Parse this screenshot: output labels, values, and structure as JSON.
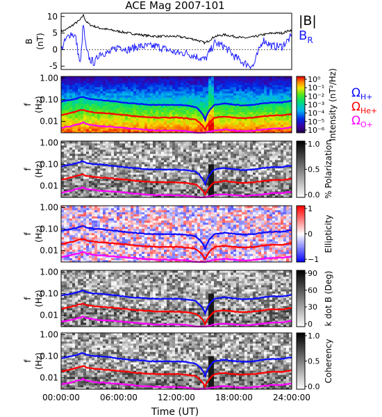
{
  "title": "ACE Mag 2007-101",
  "colors": {
    "b_total": "#000000",
    "b_r": "#1a1aff",
    "gyro_h": "#0a0aff",
    "gyro_he": "#ff0000",
    "gyro_o": "#ff00ff"
  },
  "labels": {
    "b_ylabel": "B",
    "b_yunit": "(nT)",
    "f_ylabel": "f",
    "f_yunit": "(Hz)",
    "legend_btotal": "|B|",
    "legend_br": "B",
    "legend_br_sub": "R",
    "omega": "Ω",
    "sub_h": "H+",
    "sub_he": "He+",
    "sub_o": "O+"
  },
  "chart_data": {
    "type": "heatmap",
    "x": {
      "label": "Time (UT)",
      "range_hours": [
        0,
        24
      ],
      "tick_labels": [
        "00:00:00",
        "06:00:00",
        "12:00:00",
        "18:00:00",
        "24:00:00"
      ]
    },
    "b_panel": {
      "type": "line",
      "ylabel": "B (nT)",
      "ylim": [
        -6,
        11
      ],
      "yticks": [
        "10",
        "5",
        "0",
        "-5"
      ],
      "series": [
        {
          "name": "|B|",
          "t": [
            0,
            0.5,
            1,
            1.5,
            2,
            2.3,
            2.6,
            3,
            3.5,
            4,
            5,
            6,
            7,
            8,
            9,
            10,
            11,
            12,
            13,
            14,
            15,
            16,
            17,
            18,
            19,
            20,
            21,
            22,
            23,
            24
          ],
          "values": [
            5.5,
            6.0,
            7.0,
            8.0,
            9.0,
            10.5,
            8.5,
            7.5,
            7.0,
            6.5,
            6.0,
            5.5,
            5.0,
            4.6,
            4.2,
            4.0,
            4.0,
            4.0,
            3.6,
            3.0,
            2.0,
            4.0,
            4.5,
            4.0,
            3.5,
            3.8,
            4.5,
            5.0,
            5.0,
            6.0
          ]
        },
        {
          "name": "B_R",
          "t": [
            0,
            0.5,
            1,
            1.5,
            2,
            2.3,
            2.6,
            3,
            3.5,
            4,
            5,
            6,
            7,
            8,
            9,
            10,
            11,
            12,
            13,
            14,
            15,
            16,
            17,
            18,
            19,
            20,
            21,
            22,
            23,
            24
          ],
          "values": [
            0.0,
            3.0,
            5.0,
            4.0,
            -5.0,
            8.0,
            0.0,
            -3.0,
            -4.0,
            -1.0,
            -1.0,
            1.0,
            0.0,
            1.0,
            1.0,
            1.0,
            0.0,
            -1.0,
            -1.0,
            -2.0,
            -3.0,
            2.0,
            1.0,
            -2.0,
            -4.0,
            -5.0,
            3.0,
            1.0,
            1.0,
            4.0
          ]
        }
      ]
    },
    "spectral_panels": [
      {
        "name": "Intensity",
        "ylabel": "f (Hz)",
        "yscale": "log",
        "ylim": [
          0.003,
          1.2
        ],
        "yticks": [
          "1.00",
          "0.10",
          "0.01"
        ],
        "colorbar_label": "Intensity (nT²/Hz)",
        "colorbar_ticks": [
          "10⁰",
          "10⁻¹",
          "10⁻²",
          "10⁻³",
          "10⁻⁴",
          "10⁻⁵",
          "10⁻⁶"
        ],
        "colormap": "rainbow"
      },
      {
        "name": "% Polarization",
        "ylabel": "f (Hz)",
        "yscale": "log",
        "ylim": [
          0.003,
          1.2
        ],
        "yticks": [
          "1.00",
          "0.10",
          "0.01"
        ],
        "colorbar_label": "% Polarization",
        "colorbar_ticks": [
          "1.0",
          "0.5",
          "0.0"
        ],
        "colormap": "gray"
      },
      {
        "name": "Ellipticity",
        "ylabel": "f (Hz)",
        "yscale": "log",
        "ylim": [
          0.003,
          1.2
        ],
        "yticks": [
          "1.00",
          "0.10",
          "0.01"
        ],
        "colorbar_label": "Ellipticity",
        "colorbar_ticks": [
          "1",
          "0",
          "−1"
        ],
        "colormap": "bwr"
      },
      {
        "name": "k dot B",
        "ylabel": "f (Hz)",
        "yscale": "log",
        "ylim": [
          0.003,
          1.2
        ],
        "yticks": [
          "1.00",
          "0.10",
          "0.01"
        ],
        "colorbar_label": "k dot B (Deg)",
        "colorbar_ticks": [
          "90",
          "60",
          "30",
          "0"
        ],
        "colormap": "gray"
      },
      {
        "name": "Coherency",
        "ylabel": "f (Hz)",
        "yscale": "log",
        "ylim": [
          0.003,
          1.2
        ],
        "yticks": [
          "1.00",
          "0.10",
          "0.01"
        ],
        "colorbar_label": "Coherency",
        "colorbar_ticks": [
          "1.0",
          "0.5",
          "0.0"
        ],
        "colormap": "gray"
      }
    ],
    "gyrofrequency_lines": {
      "t": [
        0,
        0.5,
        1,
        1.5,
        2,
        2.3,
        2.6,
        3,
        3.5,
        4,
        5,
        6,
        7,
        8,
        9,
        10,
        11,
        12,
        13,
        14,
        15,
        16,
        17,
        18,
        19,
        20,
        21,
        22,
        23,
        24
      ],
      "series": [
        {
          "name": "Ω_H+",
          "values_hz": [
            0.08,
            0.09,
            0.1,
            0.11,
            0.13,
            0.14,
            0.12,
            0.11,
            0.1,
            0.1,
            0.09,
            0.08,
            0.07,
            0.065,
            0.06,
            0.058,
            0.058,
            0.058,
            0.055,
            0.046,
            0.012,
            0.06,
            0.068,
            0.06,
            0.055,
            0.058,
            0.068,
            0.075,
            0.075,
            0.09
          ]
        },
        {
          "name": "Ω_He+",
          "values_hz": [
            0.02,
            0.022,
            0.025,
            0.028,
            0.033,
            0.035,
            0.03,
            0.028,
            0.026,
            0.025,
            0.023,
            0.021,
            0.019,
            0.017,
            0.016,
            0.015,
            0.015,
            0.015,
            0.014,
            0.012,
            0.004,
            0.015,
            0.017,
            0.015,
            0.014,
            0.015,
            0.017,
            0.019,
            0.019,
            0.022
          ]
        },
        {
          "name": "Ω_O+",
          "values_hz": [
            0.005,
            0.0055,
            0.006,
            0.007,
            0.008,
            0.009,
            0.0075,
            0.007,
            0.0065,
            0.006,
            0.0057,
            0.0053,
            0.0048,
            0.0044,
            0.004,
            0.0038,
            0.0038,
            0.0038,
            0.0036,
            0.003,
            0.003,
            0.0038,
            0.0042,
            0.0038,
            0.0035,
            0.0037,
            0.0042,
            0.0047,
            0.0047,
            0.0055
          ]
        }
      ]
    }
  }
}
